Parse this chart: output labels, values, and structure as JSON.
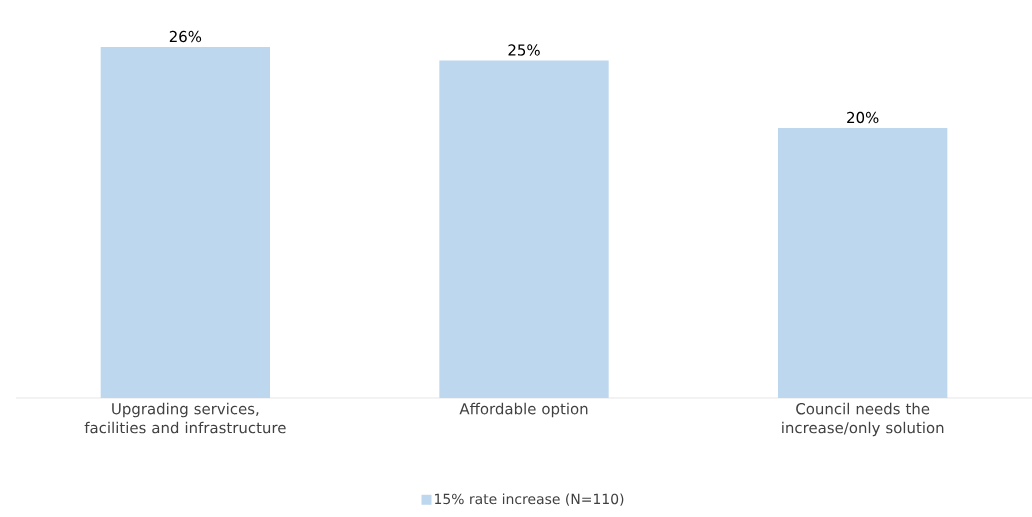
{
  "chart_data": {
    "type": "bar",
    "categories": [
      "Upgrading services, facilities and infrastructure",
      "Affordable option",
      "Council needs the increase/only solution"
    ],
    "series": [
      {
        "name": "15% rate increase (N=110)",
        "color": "#bdd7ee",
        "values": [
          26,
          25,
          20
        ],
        "value_labels": [
          "26%",
          "25%",
          "20%"
        ]
      }
    ],
    "legend": "bottom"
  }
}
